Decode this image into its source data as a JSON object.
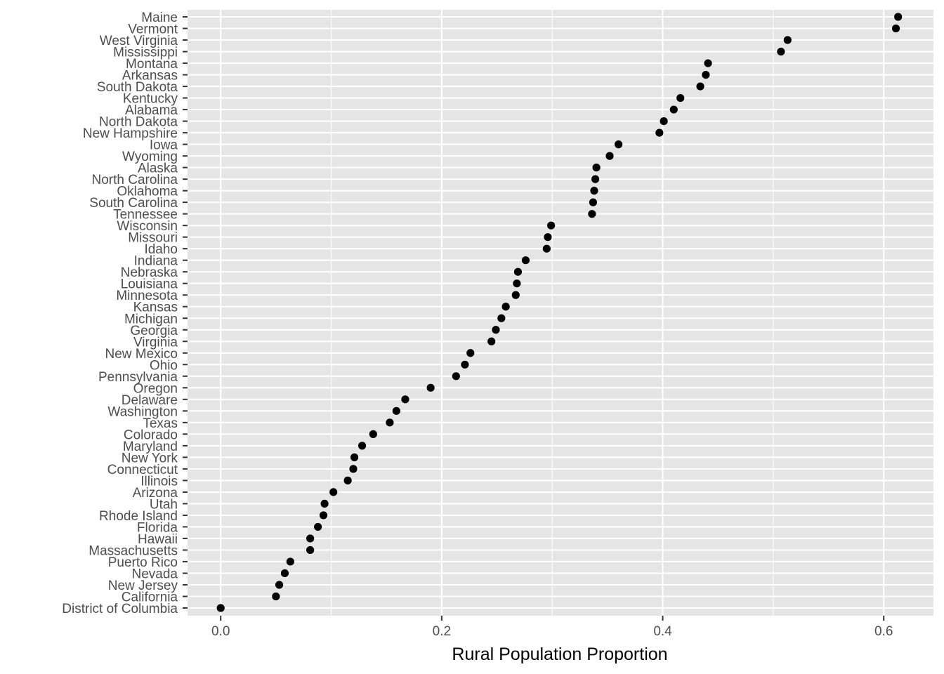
{
  "chart_data": {
    "type": "scatter",
    "title": "",
    "xlabel": "Rural Population Proportion",
    "ylabel": "",
    "xlim": [
      -0.03,
      0.645
    ],
    "x_ticks": [
      0.0,
      0.2,
      0.4,
      0.6
    ],
    "x_tick_labels": [
      "0.0",
      "0.2",
      "0.4",
      "0.6"
    ],
    "grid": true,
    "legend": "none",
    "colors": {
      "panel": "#e5e5e5",
      "grid": "#ffffff",
      "point": "#000000",
      "tick_text": "#4d4d4d",
      "title_text": "#000000"
    },
    "points": [
      {
        "label": "Maine",
        "value": 0.613
      },
      {
        "label": "Vermont",
        "value": 0.611
      },
      {
        "label": "West Virginia",
        "value": 0.513
      },
      {
        "label": "Mississippi",
        "value": 0.507
      },
      {
        "label": "Montana",
        "value": 0.441
      },
      {
        "label": "Arkansas",
        "value": 0.439
      },
      {
        "label": "South Dakota",
        "value": 0.434
      },
      {
        "label": "Kentucky",
        "value": 0.416
      },
      {
        "label": "Alabama",
        "value": 0.41
      },
      {
        "label": "North Dakota",
        "value": 0.401
      },
      {
        "label": "New Hampshire",
        "value": 0.397
      },
      {
        "label": "Iowa",
        "value": 0.36
      },
      {
        "label": "Wyoming",
        "value": 0.352
      },
      {
        "label": "Alaska",
        "value": 0.34
      },
      {
        "label": "North Carolina",
        "value": 0.339
      },
      {
        "label": "Oklahoma",
        "value": 0.338
      },
      {
        "label": "South Carolina",
        "value": 0.337
      },
      {
        "label": "Tennessee",
        "value": 0.336
      },
      {
        "label": "Wisconsin",
        "value": 0.299
      },
      {
        "label": "Missouri",
        "value": 0.296
      },
      {
        "label": "Idaho",
        "value": 0.295
      },
      {
        "label": "Indiana",
        "value": 0.276
      },
      {
        "label": "Nebraska",
        "value": 0.269
      },
      {
        "label": "Louisiana",
        "value": 0.268
      },
      {
        "label": "Minnesota",
        "value": 0.267
      },
      {
        "label": "Kansas",
        "value": 0.258
      },
      {
        "label": "Michigan",
        "value": 0.254
      },
      {
        "label": "Georgia",
        "value": 0.249
      },
      {
        "label": "Virginia",
        "value": 0.245
      },
      {
        "label": "New Mexico",
        "value": 0.226
      },
      {
        "label": "Ohio",
        "value": 0.221
      },
      {
        "label": "Pennsylvania",
        "value": 0.213
      },
      {
        "label": "Oregon",
        "value": 0.19
      },
      {
        "label": "Delaware",
        "value": 0.167
      },
      {
        "label": "Washington",
        "value": 0.159
      },
      {
        "label": "Texas",
        "value": 0.153
      },
      {
        "label": "Colorado",
        "value": 0.138
      },
      {
        "label": "Maryland",
        "value": 0.128
      },
      {
        "label": "New York",
        "value": 0.121
      },
      {
        "label": "Connecticut",
        "value": 0.12
      },
      {
        "label": "Illinois",
        "value": 0.115
      },
      {
        "label": "Arizona",
        "value": 0.102
      },
      {
        "label": "Utah",
        "value": 0.094
      },
      {
        "label": "Rhode Island",
        "value": 0.093
      },
      {
        "label": "Florida",
        "value": 0.088
      },
      {
        "label": "Hawaii",
        "value": 0.081
      },
      {
        "label": "Massachusetts",
        "value": 0.081
      },
      {
        "label": "Puerto Rico",
        "value": 0.063
      },
      {
        "label": "Nevada",
        "value": 0.058
      },
      {
        "label": "New Jersey",
        "value": 0.053
      },
      {
        "label": "California",
        "value": 0.05
      },
      {
        "label": "District of Columbia",
        "value": 0.0
      }
    ]
  }
}
